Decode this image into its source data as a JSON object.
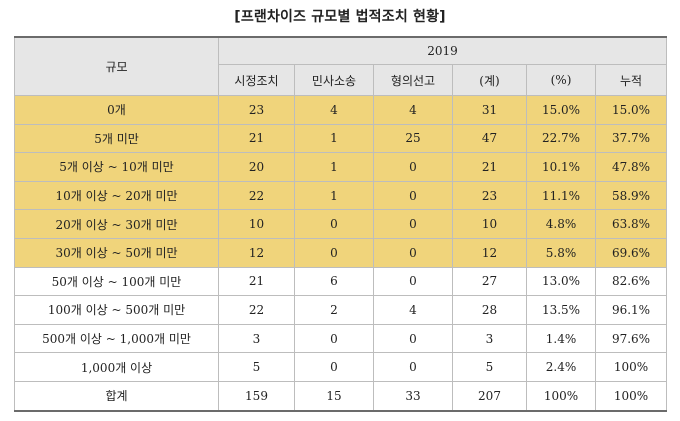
{
  "title": "[프랜차이즈 규모별 법적조치 현황]",
  "header": {
    "scale_label": "규모",
    "year": "2019",
    "columns": [
      "시정조치",
      "민사소송",
      "형의선고",
      "(계)",
      "(%)",
      "누적"
    ]
  },
  "rows": [
    {
      "label": "0개",
      "values": [
        "23",
        "4",
        "4",
        "31",
        "15.0%",
        "15.0%"
      ],
      "highlight": true
    },
    {
      "label": "5개 미만",
      "values": [
        "21",
        "1",
        "25",
        "47",
        "22.7%",
        "37.7%"
      ],
      "highlight": true
    },
    {
      "label": "5개 이상 ~ 10개 미만",
      "values": [
        "20",
        "1",
        "0",
        "21",
        "10.1%",
        "47.8%"
      ],
      "highlight": true
    },
    {
      "label": "10개 이상 ~ 20개 미만",
      "values": [
        "22",
        "1",
        "0",
        "23",
        "11.1%",
        "58.9%"
      ],
      "highlight": true
    },
    {
      "label": "20개 이상 ~ 30개 미만",
      "values": [
        "10",
        "0",
        "0",
        "10",
        "4.8%",
        "63.8%"
      ],
      "highlight": true
    },
    {
      "label": "30개 이상 ~ 50개 미만",
      "values": [
        "12",
        "0",
        "0",
        "12",
        "5.8%",
        "69.6%"
      ],
      "highlight": true
    },
    {
      "label": "50개 이상 ~ 100개 미만",
      "values": [
        "21",
        "6",
        "0",
        "27",
        "13.0%",
        "82.6%"
      ],
      "highlight": false
    },
    {
      "label": "100개 이상 ~ 500개 미만",
      "values": [
        "22",
        "2",
        "4",
        "28",
        "13.5%",
        "96.1%"
      ],
      "highlight": false
    },
    {
      "label": "500개 이상 ~ 1,000개 미만",
      "values": [
        "3",
        "0",
        "0",
        "3",
        "1.4%",
        "97.6%"
      ],
      "highlight": false
    },
    {
      "label": "1,000개 이상",
      "values": [
        "5",
        "0",
        "0",
        "5",
        "2.4%",
        "100%"
      ],
      "highlight": false
    },
    {
      "label": "합계",
      "values": [
        "159",
        "15",
        "33",
        "207",
        "100%",
        "100%"
      ],
      "highlight": false
    }
  ],
  "colors": {
    "highlight": "#f0d47b",
    "header": "#e6e6e6"
  }
}
